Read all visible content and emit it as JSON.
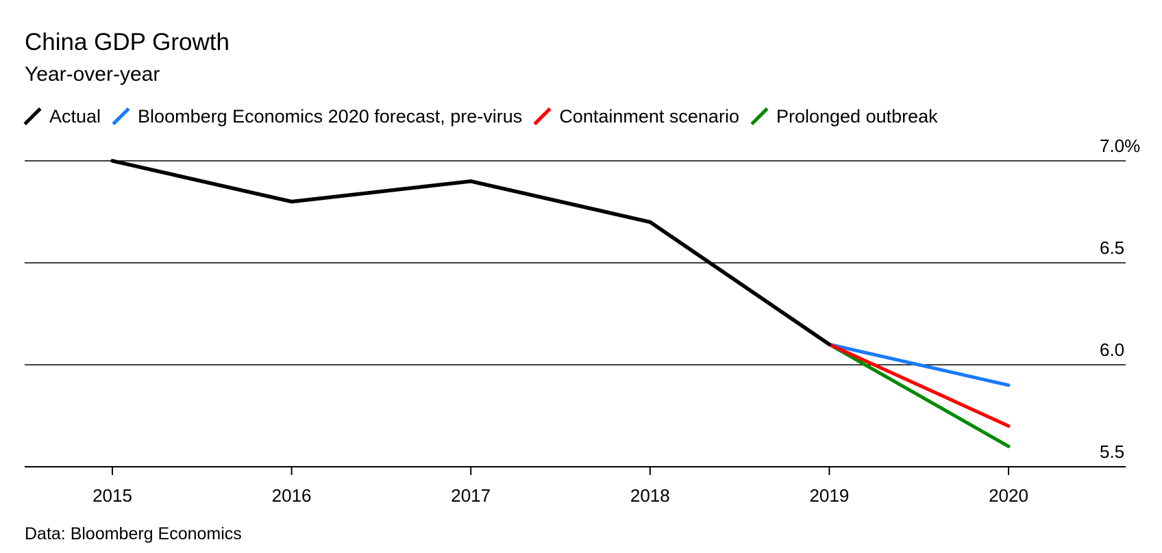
{
  "chart_data": {
    "type": "line",
    "title": "China GDP Growth",
    "subtitle": "Year-over-year",
    "source": "Data: Bloomberg Economics",
    "x": [
      2015,
      2016,
      2017,
      2018,
      2019,
      2020
    ],
    "x_tick_labels": [
      "2015",
      "2016",
      "2017",
      "2018",
      "2019",
      "2020"
    ],
    "y_ticks": [
      7.0,
      6.5,
      6.0,
      5.5
    ],
    "y_tick_labels": [
      "7.0%",
      "6.5",
      "6.0",
      "5.5"
    ],
    "ylim": [
      5.5,
      7.0
    ],
    "grid": true,
    "legend_position": "top-left",
    "series": [
      {
        "name": "Actual",
        "color": "#000000",
        "points": [
          [
            2015,
            7.0
          ],
          [
            2016,
            6.8
          ],
          [
            2017,
            6.9
          ],
          [
            2018,
            6.7
          ],
          [
            2019,
            6.1
          ]
        ]
      },
      {
        "name": "Bloomberg Economics 2020 forecast, pre-virus",
        "color": "#1a7aff",
        "points": [
          [
            2019,
            6.1
          ],
          [
            2020,
            5.9
          ]
        ]
      },
      {
        "name": "Containment scenario",
        "color": "#ff0000",
        "points": [
          [
            2019,
            6.1
          ],
          [
            2020,
            5.7
          ]
        ]
      },
      {
        "name": "Prolonged outbreak",
        "color": "#008a00",
        "points": [
          [
            2019,
            6.1
          ],
          [
            2020,
            5.6
          ]
        ]
      }
    ]
  }
}
